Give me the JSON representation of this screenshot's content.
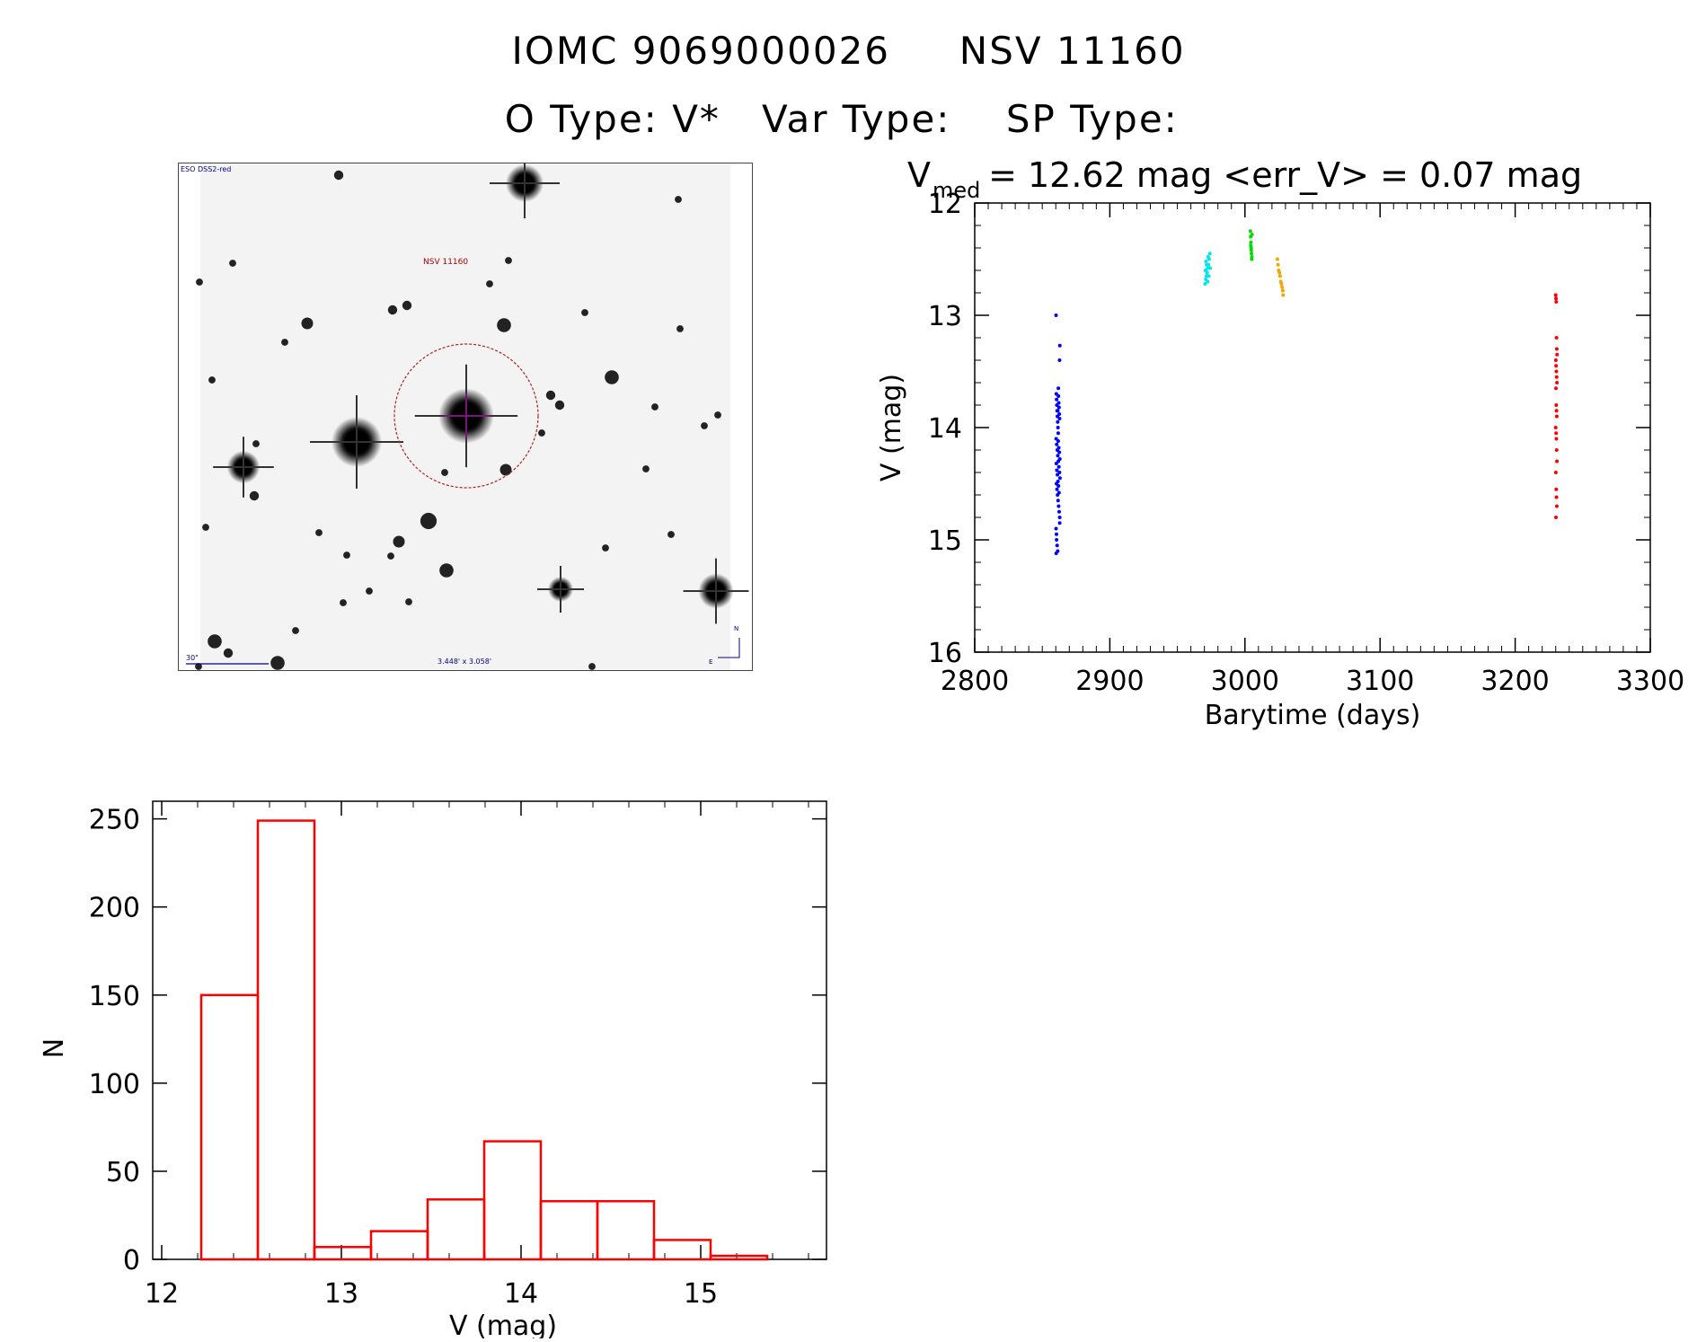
{
  "header": {
    "object": "IOMC 9069000026",
    "alias": "NSV 11160",
    "otype_label": "O Type:",
    "otype_value": "V*",
    "vartype_label": "Var Type:",
    "vartype_value": "",
    "sptype_label": "SP Type:",
    "sptype_value": ""
  },
  "finder": {
    "survey_label": "ESO DSS2-red",
    "target_label": "NSV 11160",
    "scale_label": "30\"",
    "fov_label": "3.448' x 3.058'",
    "north_label": "N",
    "east_label": "E"
  },
  "chart_data": [
    {
      "type": "scatter",
      "title_main": "V",
      "title_sub": "med",
      "title_rest": " = 12.62 mag <err_V> = 0.07 mag",
      "xlabel": "Barytime (days)",
      "ylabel": "V (mag)",
      "xlim": [
        2800,
        3300
      ],
      "ylim": [
        16,
        12
      ],
      "y_inverted": true,
      "xticks": [
        2800,
        2900,
        3000,
        3100,
        3200,
        3300
      ],
      "yticks": [
        12,
        13,
        14,
        15,
        16
      ],
      "series": [
        {
          "color": "#0000ff",
          "x": [
            2860.2,
            2860.4,
            2860.6,
            2860.8,
            2861.0,
            2861.2,
            2861.4,
            2861.6,
            2861.8,
            2862.0,
            2862.2,
            2862.4,
            2862.6,
            2862.8,
            2863.0,
            2860.3,
            2860.7,
            2861.1,
            2861.5,
            2861.9,
            2862.3,
            2862.7,
            2863.1,
            2860.5,
            2860.9,
            2861.3,
            2861.7,
            2862.1,
            2862.5,
            2862.9,
            2860.2,
            2860.6,
            2861.0,
            2861.4,
            2861.8,
            2862.2,
            2862.6,
            2863.0,
            2860.4,
            2860.8,
            2861.2,
            2861.6,
            2862.0,
            2862.4,
            2862.8,
            2860.3,
            2861.5,
            2862.9,
            2861.9,
            2860.5
          ],
          "y": [
            13.0,
            13.7,
            13.75,
            13.8,
            13.85,
            13.9,
            13.95,
            14.0,
            14.05,
            13.72,
            13.78,
            13.82,
            13.88,
            13.92,
            13.27,
            14.1,
            14.15,
            14.2,
            14.25,
            14.3,
            14.35,
            14.4,
            14.45,
            14.5,
            14.55,
            14.6,
            14.65,
            14.7,
            14.75,
            14.8,
            14.9,
            15.0,
            15.05,
            15.1,
            14.12,
            14.18,
            14.22,
            14.28,
            14.32,
            14.38,
            14.42,
            14.48,
            14.52,
            14.58,
            13.4,
            15.12,
            13.85,
            14.85,
            13.65,
            14.95
          ]
        },
        {
          "color": "#00e5ee",
          "x": [
            2970.5,
            2971.0,
            2971.5,
            2972.0,
            2972.5,
            2973.0,
            2973.5,
            2974.0,
            2970.8,
            2971.6,
            2972.4,
            2973.2,
            2974.2,
            2971.2,
            2972.8
          ],
          "y": [
            12.72,
            12.68,
            12.65,
            12.62,
            12.58,
            12.55,
            12.5,
            12.45,
            12.6,
            12.55,
            12.7,
            12.65,
            12.58,
            12.52,
            12.48
          ]
        },
        {
          "color": "#00dd00",
          "x": [
            3004.0,
            3004.2,
            3004.4,
            3004.6,
            3004.8,
            3005.0,
            3005.2,
            3004.3,
            3004.7,
            3005.1
          ],
          "y": [
            12.25,
            12.3,
            12.35,
            12.4,
            12.45,
            12.5,
            12.28,
            12.38,
            12.42,
            12.48
          ]
        },
        {
          "color": "#f0a800",
          "x": [
            3024.0,
            3024.5,
            3025.0,
            3025.5,
            3026.0,
            3026.5,
            3027.0,
            3027.5,
            3028.0,
            3028.3
          ],
          "y": [
            12.5,
            12.55,
            12.6,
            12.62,
            12.65,
            12.7,
            12.72,
            12.75,
            12.78,
            12.82
          ]
        },
        {
          "color": "#ff0000",
          "x": [
            3230.0,
            3230.2,
            3230.4,
            3230.6,
            3230.8,
            3231.0,
            3230.1,
            3230.3,
            3230.5,
            3230.7,
            3230.9,
            3230.2,
            3230.4,
            3230.6,
            3230.8,
            3230.0,
            3230.3,
            3230.5,
            3230.7,
            3230.9,
            3230.1,
            3230.4,
            3230.6,
            3230.8,
            3230.2
          ],
          "y": [
            12.82,
            12.85,
            12.88,
            13.2,
            13.3,
            13.35,
            13.4,
            13.45,
            13.5,
            13.55,
            13.6,
            13.65,
            13.8,
            13.85,
            13.9,
            14.0,
            14.05,
            14.1,
            14.2,
            14.3,
            14.4,
            14.55,
            14.62,
            14.7,
            14.8
          ]
        }
      ]
    },
    {
      "type": "bar",
      "subtype": "histogram",
      "xlabel": "V (mag)",
      "ylabel": "N",
      "xlim": [
        11.95,
        15.7
      ],
      "ylim": [
        0,
        260
      ],
      "xticks": [
        12,
        13,
        14,
        15
      ],
      "yticks": [
        0,
        50,
        100,
        150,
        200,
        250
      ],
      "color": "#ff0000",
      "bin_edges": [
        12.22,
        12.535,
        12.85,
        13.165,
        13.48,
        13.795,
        14.11,
        14.425,
        14.74,
        15.055,
        15.37
      ],
      "counts": [
        150,
        249,
        7,
        16,
        34,
        67,
        33,
        33,
        11,
        2
      ]
    }
  ]
}
